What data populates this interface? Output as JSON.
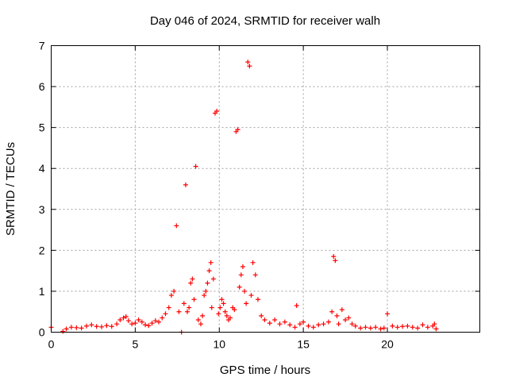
{
  "chart_data": {
    "type": "scatter",
    "title": "Day 046 of 2024, SRMTID for receiver walh",
    "xlabel": "GPS time / hours",
    "ylabel": "SRMTID / TECUs",
    "xlim": [
      0,
      25.5
    ],
    "ylim": [
      0,
      7
    ],
    "xticks": [
      0,
      5,
      10,
      15,
      20
    ],
    "yticks": [
      0,
      1,
      2,
      3,
      4,
      5,
      6,
      7
    ],
    "grid": true,
    "marker": "+",
    "color": "#ff0000",
    "series": [
      {
        "name": "SRMTID",
        "x": [
          0.0,
          0.7,
          0.9,
          1.2,
          1.5,
          1.8,
          2.1,
          2.4,
          2.7,
          3.0,
          3.3,
          3.6,
          3.9,
          4.1,
          4.3,
          4.45,
          4.6,
          4.8,
          5.0,
          5.2,
          5.4,
          5.6,
          5.8,
          6.0,
          6.2,
          6.4,
          6.6,
          6.8,
          7.0,
          7.15,
          7.3,
          7.45,
          7.6,
          7.75,
          7.9,
          8.0,
          8.1,
          8.2,
          8.3,
          8.4,
          8.5,
          8.6,
          8.75,
          8.9,
          9.0,
          9.1,
          9.2,
          9.3,
          9.4,
          9.5,
          9.55,
          9.65,
          9.75,
          9.85,
          9.95,
          10.05,
          10.15,
          10.25,
          10.35,
          10.45,
          10.55,
          10.65,
          10.8,
          10.9,
          11.0,
          11.1,
          11.2,
          11.3,
          11.4,
          11.5,
          11.6,
          11.7,
          11.8,
          11.9,
          12.0,
          12.15,
          12.3,
          12.5,
          12.7,
          13.0,
          13.3,
          13.6,
          13.9,
          14.2,
          14.5,
          14.6,
          14.8,
          15.0,
          15.3,
          15.6,
          15.9,
          16.2,
          16.5,
          16.7,
          16.8,
          16.9,
          17.0,
          17.1,
          17.3,
          17.5,
          17.7,
          17.9,
          18.1,
          18.4,
          18.7,
          19.0,
          19.3,
          19.6,
          19.8,
          20.0,
          20.3,
          20.6,
          20.9,
          21.2,
          21.5,
          21.8,
          22.1,
          22.4,
          22.7,
          22.8,
          22.9
        ],
        "y": [
          0.12,
          0.02,
          0.08,
          0.12,
          0.11,
          0.1,
          0.15,
          0.18,
          0.14,
          0.13,
          0.16,
          0.14,
          0.2,
          0.3,
          0.35,
          0.38,
          0.28,
          0.2,
          0.22,
          0.3,
          0.25,
          0.18,
          0.16,
          0.22,
          0.28,
          0.25,
          0.35,
          0.45,
          0.6,
          0.9,
          1.0,
          2.6,
          0.5,
          0.0,
          0.7,
          3.6,
          0.5,
          0.6,
          1.2,
          1.3,
          0.8,
          4.05,
          0.3,
          0.2,
          0.4,
          0.9,
          1.0,
          1.2,
          1.5,
          1.7,
          0.6,
          1.3,
          5.35,
          5.4,
          0.45,
          0.6,
          0.8,
          0.7,
          0.5,
          0.4,
          0.3,
          0.35,
          0.6,
          0.55,
          4.9,
          4.95,
          1.1,
          1.4,
          1.6,
          1.0,
          0.7,
          6.6,
          6.5,
          0.9,
          1.7,
          1.4,
          0.8,
          0.4,
          0.3,
          0.22,
          0.3,
          0.2,
          0.25,
          0.18,
          0.12,
          0.65,
          0.2,
          0.25,
          0.15,
          0.12,
          0.18,
          0.2,
          0.25,
          0.5,
          1.85,
          1.75,
          0.4,
          0.2,
          0.55,
          0.3,
          0.35,
          0.2,
          0.15,
          0.1,
          0.12,
          0.1,
          0.12,
          0.08,
          0.1,
          0.45,
          0.15,
          0.12,
          0.14,
          0.15,
          0.12,
          0.1,
          0.18,
          0.12,
          0.15,
          0.2,
          0.08
        ]
      }
    ]
  }
}
